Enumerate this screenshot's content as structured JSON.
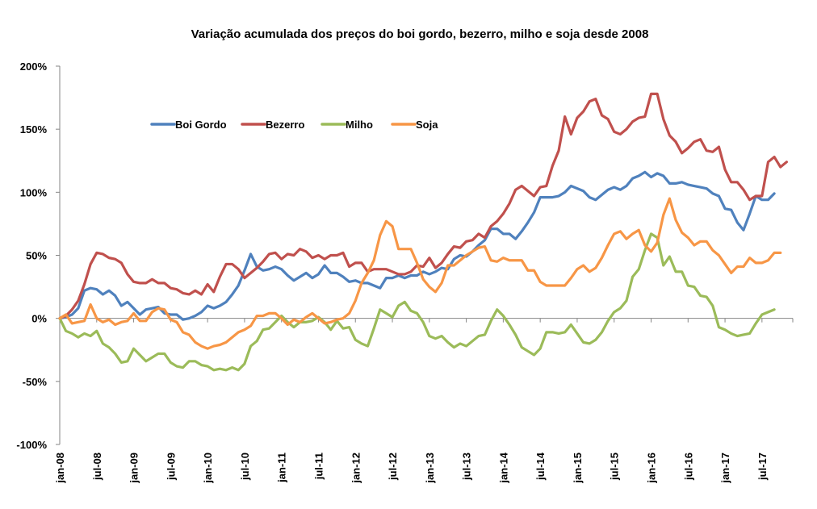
{
  "chart_data": {
    "type": "line",
    "title": "Variação acumulada dos preços do boi gordo, bezerro, milho e soja desde 2008",
    "xlabel": "",
    "ylabel": "",
    "ylim": [
      -100,
      200
    ],
    "yticks": [
      200,
      150,
      100,
      50,
      0,
      -50,
      -100
    ],
    "ytick_labels": [
      "200%",
      "150%",
      "100%",
      "50%",
      "0%",
      "-50%",
      "-100%"
    ],
    "xtick_labels": [
      "jan-08",
      "jul-08",
      "jan-09",
      "jul-09",
      "jan-10",
      "jul-10",
      "jan-11",
      "jul-11",
      "jan-12",
      "jul-12",
      "jan-13",
      "jul-13",
      "jan-14",
      "jul-14",
      "jan-15",
      "jul-15",
      "jan-16",
      "jul-16",
      "jan-17",
      "jul-17"
    ],
    "x_start": "jan-08",
    "x_frequency": "monthly",
    "n_points": 120,
    "grid": false,
    "legend_position": "top-left",
    "series": [
      {
        "name": "Boi Gordo",
        "color": "#4f81bd",
        "values": [
          0,
          1,
          3,
          8,
          22,
          24,
          23,
          19,
          22,
          18,
          10,
          13,
          8,
          3,
          7,
          8,
          9,
          4,
          3,
          3,
          -1,
          0,
          2,
          5,
          10,
          8,
          10,
          13,
          19,
          26,
          38,
          51,
          41,
          38,
          39,
          41,
          39,
          34,
          30,
          33,
          36,
          32,
          35,
          42,
          36,
          36,
          33,
          29,
          30,
          28,
          28,
          26,
          24,
          32,
          32,
          34,
          32,
          34,
          34,
          37,
          35,
          37,
          40,
          39,
          47,
          50,
          49,
          53,
          58,
          62,
          71,
          71,
          67,
          67,
          63,
          69,
          76,
          84,
          96,
          96,
          96,
          97,
          100,
          105,
          103,
          101,
          96,
          94,
          98,
          102,
          104,
          102,
          105,
          111,
          113,
          116,
          112,
          115,
          113,
          107,
          107,
          108,
          106,
          105,
          104,
          103,
          99,
          97,
          87,
          86,
          76,
          70,
          83,
          97,
          94,
          94,
          99,
          null,
          null,
          null
        ],
        "note": "values in percent; final points beyond last visible are null"
      },
      {
        "name": "Bezerro",
        "color": "#c0504d",
        "values": [
          0,
          2,
          7,
          14,
          27,
          43,
          52,
          51,
          48,
          47,
          44,
          35,
          29,
          28,
          28,
          31,
          28,
          28,
          24,
          23,
          20,
          19,
          22,
          19,
          27,
          21,
          33,
          43,
          43,
          39,
          32,
          36,
          40,
          45,
          51,
          52,
          47,
          51,
          50,
          55,
          53,
          48,
          50,
          47,
          50,
          50,
          52,
          41,
          44,
          44,
          37,
          39,
          39,
          39,
          37,
          35,
          35,
          37,
          42,
          41,
          48,
          40,
          44,
          51,
          57,
          56,
          61,
          62,
          67,
          64,
          73,
          77,
          83,
          91,
          102,
          105,
          101,
          97,
          104,
          105,
          121,
          133,
          160,
          146,
          159,
          164,
          172,
          174,
          161,
          158,
          148,
          146,
          150,
          156,
          159,
          160,
          178,
          178,
          158,
          145,
          140,
          131,
          135,
          140,
          142,
          133,
          132,
          136,
          118,
          108,
          108,
          102,
          94,
          97,
          97,
          124,
          128,
          120,
          124,
          null
        ],
        "note": "values in percent"
      },
      {
        "name": "Milho",
        "color": "#9bbb59",
        "values": [
          0,
          -10,
          -12,
          -15,
          -12,
          -14,
          -10,
          -20,
          -23,
          -28,
          -35,
          -34,
          -24,
          -29,
          -34,
          -31,
          -28,
          -28,
          -35,
          -38,
          -39,
          -34,
          -34,
          -37,
          -38,
          -41,
          -40,
          -41,
          -39,
          -41,
          -36,
          -22,
          -18,
          -9,
          -8,
          -3,
          2,
          -3,
          -7,
          -3,
          -3,
          -2,
          1,
          -3,
          -9,
          -2,
          -8,
          -7,
          -17,
          -20,
          -22,
          -8,
          7,
          4,
          1,
          10,
          13,
          6,
          4,
          -3,
          -14,
          -16,
          -14,
          -19,
          -23,
          -20,
          -22,
          -18,
          -14,
          -13,
          -2,
          7,
          2,
          -5,
          -13,
          -23,
          -26,
          -29,
          -24,
          -11,
          -11,
          -12,
          -11,
          -5,
          -12,
          -19,
          -20,
          -17,
          -11,
          -2,
          5,
          8,
          14,
          33,
          39,
          54,
          67,
          64,
          42,
          49,
          37,
          37,
          26,
          25,
          18,
          17,
          10,
          -7,
          -9,
          -12,
          -14,
          -13,
          -12,
          -4,
          3,
          5,
          7,
          null,
          null,
          null
        ],
        "note": "values in percent"
      },
      {
        "name": "Soja",
        "color": "#f79646",
        "values": [
          0,
          3,
          -4,
          -3,
          -2,
          11,
          0,
          -3,
          -1,
          -5,
          -3,
          -2,
          4,
          -2,
          -2,
          5,
          8,
          7,
          -1,
          -3,
          -11,
          -13,
          -19,
          -22,
          -24,
          -22,
          -21,
          -19,
          -15,
          -11,
          -9,
          -6,
          2,
          2,
          4,
          4,
          0,
          -5,
          -1,
          -3,
          1,
          4,
          0,
          -4,
          -3,
          -1,
          0,
          4,
          14,
          28,
          36,
          46,
          66,
          77,
          73,
          55,
          55,
          55,
          44,
          31,
          25,
          21,
          28,
          42,
          42,
          46,
          50,
          53,
          56,
          57,
          46,
          45,
          48,
          46,
          46,
          46,
          38,
          38,
          29,
          26,
          26,
          26,
          26,
          32,
          39,
          42,
          37,
          40,
          48,
          58,
          67,
          69,
          63,
          67,
          70,
          58,
          53,
          60,
          82,
          95,
          78,
          68,
          64,
          58,
          61,
          61,
          54,
          50,
          43,
          36,
          41,
          41,
          48,
          44,
          44,
          46,
          52,
          52,
          null
        ],
        "note": "values in percent"
      }
    ]
  }
}
